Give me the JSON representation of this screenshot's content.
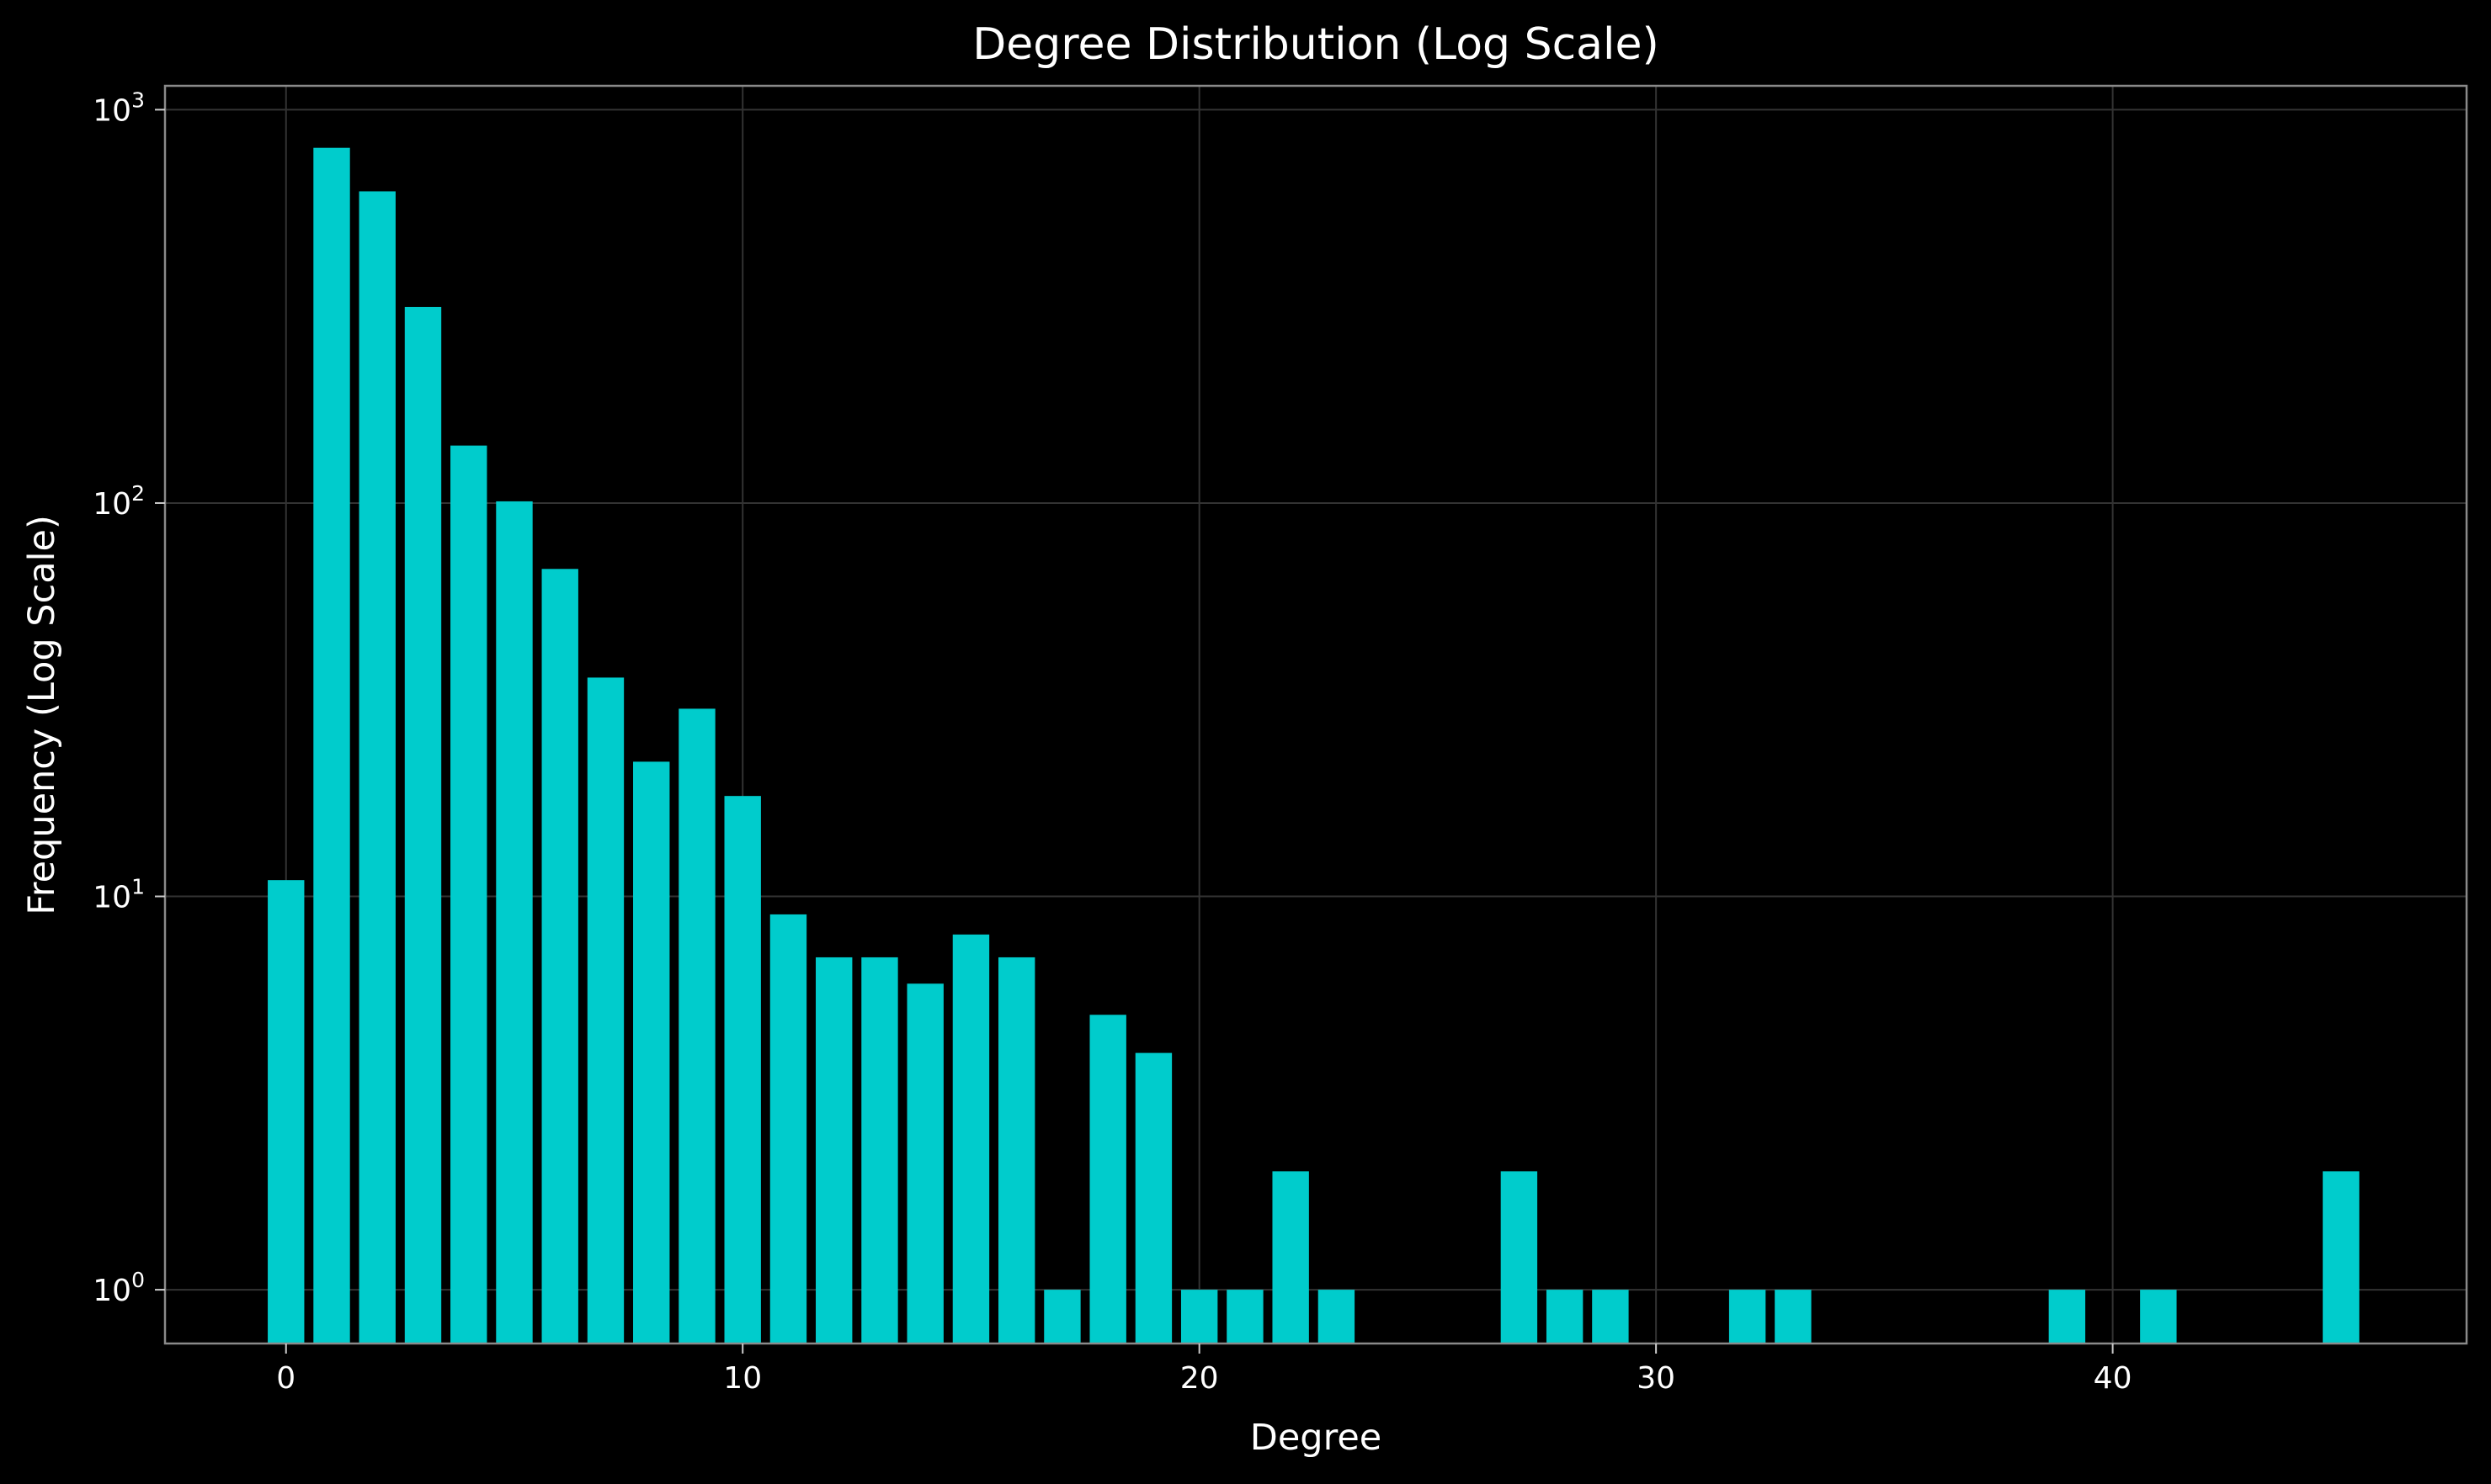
{
  "chart_data": {
    "type": "bar",
    "title": "Degree Distribution (Log Scale)",
    "xlabel": "Degree",
    "ylabel": "Frequency (Log Scale)",
    "yscale": "log",
    "xlim": [
      -2.65,
      47.75
    ],
    "ylim": [
      0.73,
      1150
    ],
    "grid": true,
    "x_ticks": [
      {
        "value": 0,
        "label": "0"
      },
      {
        "value": 10,
        "label": "10"
      },
      {
        "value": 20,
        "label": "20"
      },
      {
        "value": 30,
        "label": "30"
      },
      {
        "value": 40,
        "label": "40"
      }
    ],
    "y_ticks": [
      {
        "value": 1,
        "base": "10",
        "exp": "0"
      },
      {
        "value": 10,
        "base": "10",
        "exp": "1"
      },
      {
        "value": 100,
        "base": "10",
        "exp": "2"
      },
      {
        "value": 1000,
        "base": "10",
        "exp": "3"
      }
    ],
    "bar_color": "#00cccc",
    "points": [
      {
        "x": 0,
        "y": 11
      },
      {
        "x": 1,
        "y": 800
      },
      {
        "x": 2,
        "y": 620
      },
      {
        "x": 3,
        "y": 315
      },
      {
        "x": 4,
        "y": 140
      },
      {
        "x": 5,
        "y": 101
      },
      {
        "x": 6,
        "y": 68
      },
      {
        "x": 7,
        "y": 36
      },
      {
        "x": 8,
        "y": 22
      },
      {
        "x": 9,
        "y": 30
      },
      {
        "x": 10,
        "y": 18
      },
      {
        "x": 11,
        "y": 9
      },
      {
        "x": 12,
        "y": 7
      },
      {
        "x": 13,
        "y": 7
      },
      {
        "x": 14,
        "y": 6
      },
      {
        "x": 15,
        "y": 8
      },
      {
        "x": 16,
        "y": 7
      },
      {
        "x": 17,
        "y": 1
      },
      {
        "x": 18,
        "y": 5
      },
      {
        "x": 19,
        "y": 4
      },
      {
        "x": 20,
        "y": 1
      },
      {
        "x": 21,
        "y": 1
      },
      {
        "x": 22,
        "y": 2
      },
      {
        "x": 23,
        "y": 1
      },
      {
        "x": 27,
        "y": 2
      },
      {
        "x": 28,
        "y": 1
      },
      {
        "x": 29,
        "y": 1
      },
      {
        "x": 32,
        "y": 1
      },
      {
        "x": 33,
        "y": 1
      },
      {
        "x": 39,
        "y": 1
      },
      {
        "x": 41,
        "y": 1
      },
      {
        "x": 45,
        "y": 2
      }
    ]
  }
}
